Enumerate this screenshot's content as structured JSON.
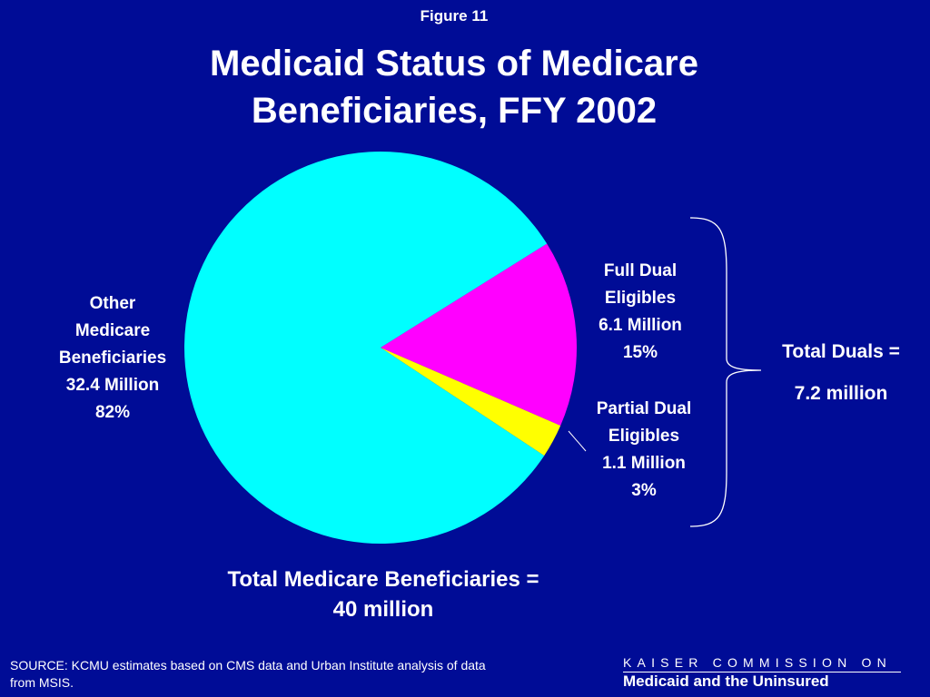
{
  "figure_label": "Figure 11",
  "colors": {
    "background": "#000c96",
    "text": "#ffffff",
    "slice_other": "#00ffff",
    "slice_full_dual": "#ff00ff",
    "slice_partial_dual": "#ffff00"
  },
  "chart_data": {
    "type": "pie",
    "title": [
      "Medicaid Status of Medicare",
      "Beneficiaries, FFY 2002"
    ],
    "slices": [
      {
        "label_lines": [
          "Full Dual",
          "Eligibles",
          "6.1 Million",
          "15%"
        ],
        "value_millions": 6.1,
        "percent": 15,
        "color": "#ff00ff"
      },
      {
        "label_lines": [
          "Partial Dual",
          "Eligibles",
          "1.1 Million",
          "3%"
        ],
        "value_millions": 1.1,
        "percent": 3,
        "color": "#ffff00"
      },
      {
        "label_lines": [
          "Other",
          "Medicare",
          "Beneficiaries",
          "32.4 Million",
          "82%"
        ],
        "value_millions": 32.4,
        "percent": 82,
        "color": "#00ffff"
      }
    ],
    "total_duals": [
      "Total Duals =",
      "7.2 million"
    ],
    "total_medicare": [
      "Total Medicare Beneficiaries =",
      "40 million"
    ]
  },
  "source": "SOURCE: KCMU estimates based on CMS data and Urban Institute analysis of data from MSIS.",
  "footer": {
    "line1": "KAISER COMMISSION ON",
    "line2": "Medicaid and the Uninsured"
  }
}
